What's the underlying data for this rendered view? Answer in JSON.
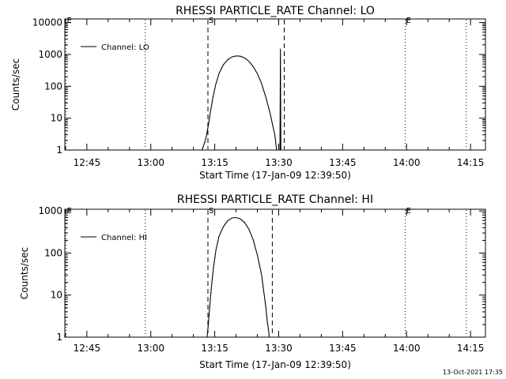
{
  "footer": {
    "timestamp": "13-Oct-2021 17:35"
  },
  "chart_data": [
    {
      "type": "line",
      "title": "RHESSI PARTICLE_RATE Channel: LO",
      "xlabel": "Start Time (17-Jan-09 12:39:50)",
      "ylabel": "Counts/sec",
      "yscale": "log",
      "ylim": [
        1,
        13000
      ],
      "xlim_minutes": [
        39.833,
        138.5
      ],
      "x_ticks": [
        {
          "label": "12:45",
          "minutes": 45
        },
        {
          "label": "13:00",
          "minutes": 60
        },
        {
          "label": "13:15",
          "minutes": 75
        },
        {
          "label": "13:30",
          "minutes": 90
        },
        {
          "label": "13:45",
          "minutes": 105
        },
        {
          "label": "14:00",
          "minutes": 120
        },
        {
          "label": "14:15",
          "minutes": 135
        }
      ],
      "y_ticks": [
        {
          "label": "1",
          "value": 1
        },
        {
          "label": "10",
          "value": 10
        },
        {
          "label": "100",
          "value": 100
        },
        {
          "label": "1000",
          "value": 1000
        },
        {
          "label": "10000",
          "value": 10000
        }
      ],
      "legend": {
        "position": "top-left",
        "label": "Channel: LO"
      },
      "markers": [
        {
          "label": "E",
          "minutes": 40.1,
          "style": "dotted"
        },
        {
          "label": "S",
          "minutes": 73.4,
          "style": "dashed"
        },
        {
          "label": "",
          "minutes": 58.7,
          "style": "dotted"
        },
        {
          "label": "",
          "minutes": 91.3,
          "style": "dashed"
        },
        {
          "label": "E",
          "minutes": 119.7,
          "style": "dotted"
        },
        {
          "label": "",
          "minutes": 134.0,
          "style": "dotted"
        }
      ],
      "series": [
        {
          "name": "Channel: LO",
          "x": [
            72.0,
            72.3,
            72.7,
            73.1,
            73.5,
            74.0,
            74.5,
            75.2,
            76.0,
            77.0,
            78.0,
            79.0,
            80.0,
            81.0,
            82.0,
            83.0,
            84.0,
            85.0,
            86.0,
            87.0,
            88.0,
            88.6,
            89.1,
            89.5,
            90.3,
            90.4,
            90.5,
            90.6
          ],
          "y": [
            1,
            1.3,
            1.8,
            3,
            6,
            16,
            40,
            110,
            250,
            470,
            680,
            830,
            900,
            880,
            780,
            610,
            420,
            250,
            120,
            45,
            14,
            6,
            3,
            1,
            1,
            1500,
            1,
            1
          ]
        }
      ]
    },
    {
      "type": "line",
      "title": "RHESSI PARTICLE_RATE Channel: HI",
      "xlabel": "Start Time (17-Jan-09 12:39:50)",
      "ylabel": "Counts/sec",
      "yscale": "log",
      "ylim": [
        1,
        1100
      ],
      "xlim_minutes": [
        39.833,
        138.5
      ],
      "x_ticks": [
        {
          "label": "12:45",
          "minutes": 45
        },
        {
          "label": "13:00",
          "minutes": 60
        },
        {
          "label": "13:15",
          "minutes": 75
        },
        {
          "label": "13:30",
          "minutes": 90
        },
        {
          "label": "13:45",
          "minutes": 105
        },
        {
          "label": "14:00",
          "minutes": 120
        },
        {
          "label": "14:15",
          "minutes": 135
        }
      ],
      "y_ticks": [
        {
          "label": "1",
          "value": 1
        },
        {
          "label": "10",
          "value": 10
        },
        {
          "label": "100",
          "value": 100
        },
        {
          "label": "1000",
          "value": 1000
        }
      ],
      "legend": {
        "position": "top-left",
        "label": "Channel: HI"
      },
      "markers": [
        {
          "label": "E",
          "minutes": 40.1,
          "style": "dotted"
        },
        {
          "label": "S",
          "minutes": 73.4,
          "style": "dashed"
        },
        {
          "label": "",
          "minutes": 58.7,
          "style": "dotted"
        },
        {
          "label": "",
          "minutes": 88.5,
          "style": "dashed"
        },
        {
          "label": "E",
          "minutes": 119.7,
          "style": "dotted"
        },
        {
          "label": "",
          "minutes": 134.0,
          "style": "dotted"
        }
      ],
      "series": [
        {
          "name": "Channel: HI",
          "x": [
            73.2,
            73.5,
            73.8,
            74.2,
            74.7,
            75.3,
            76.0,
            77.0,
            78.0,
            79.0,
            80.0,
            81.0,
            82.0,
            83.0,
            84.0,
            85.0,
            86.0,
            86.6,
            87.0,
            87.3,
            87.6,
            87.8
          ],
          "y": [
            1,
            2,
            5,
            15,
            45,
            120,
            250,
            420,
            580,
            680,
            700,
            650,
            530,
            370,
            210,
            90,
            30,
            10,
            5,
            2.5,
            1.5,
            1
          ]
        }
      ]
    }
  ]
}
